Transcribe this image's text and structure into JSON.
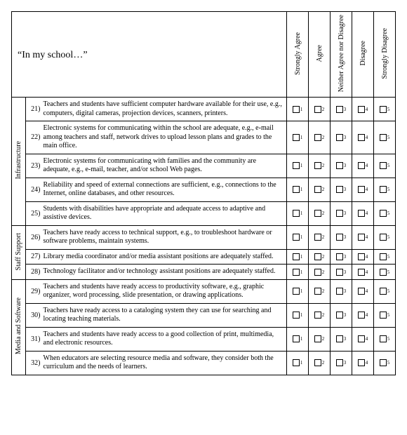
{
  "header": {
    "title": "“In my school…”"
  },
  "scale": [
    "Strongly Agree",
    "Agree",
    "Neither Agree nor Disagree",
    "Disagree",
    "Strongly Disagree"
  ],
  "categories": [
    {
      "label": "Infrastructure",
      "items": [
        {
          "n": "21)",
          "text": "Teachers and students have sufficient computer hardware available for their use, e.g., computers, digital cameras, projection devices, scanners, printers."
        },
        {
          "n": "22)",
          "text": "Electronic systems for communicating within the school are adequate, e.g., e-mail among teachers and staff, network drives to upload lesson plans and grades to the main office."
        },
        {
          "n": "23)",
          "text": "Electronic systems for communicating with families and the community are adequate, e.g., e-mail, teacher, and/or school Web pages."
        },
        {
          "n": "24)",
          "text": "Reliability and speed of external connections are sufficient, e.g., connections to the Internet, online databases, and other resources."
        },
        {
          "n": "25)",
          "text": "Students with disabilities have appropriate and adequate access to adaptive and assistive devices."
        }
      ]
    },
    {
      "label": "Staff Support",
      "items": [
        {
          "n": "26)",
          "text": "Teachers have ready access to technical support, e.g., to troubleshoot hardware or software problems, maintain systems."
        },
        {
          "n": "27)",
          "text": "Library media coordinator and/or media assistant positions are adequately staffed."
        },
        {
          "n": "28)",
          "text": "Technology facilitator and/or technology assistant positions are adequately staffed."
        }
      ]
    },
    {
      "label": "Media and Software",
      "items": [
        {
          "n": "29)",
          "text": "Teachers and students have ready access to productivity software, e.g., graphic organizer, word processing, slide presentation, or drawing applications."
        },
        {
          "n": "30)",
          "text": "Teachers have ready access to a cataloging system they can use for searching and locating teaching materials."
        },
        {
          "n": "31)",
          "text": "Teachers and students have ready access to a good collection of print, multimedia, and electronic resources."
        },
        {
          "n": "32)",
          "text": "When educators are selecting resource media and software, they consider both the curriculum and the needs of learners."
        }
      ]
    }
  ]
}
